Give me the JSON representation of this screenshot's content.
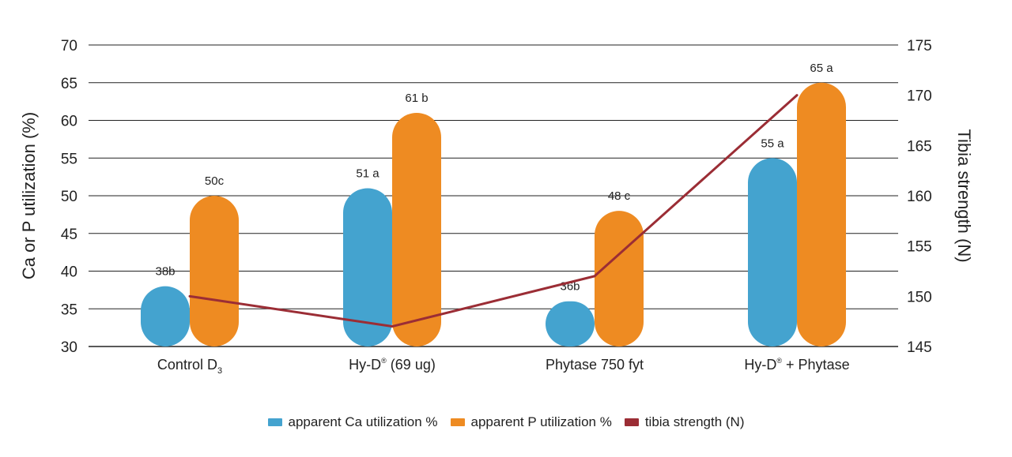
{
  "colors": {
    "ca": "#44a3cf",
    "p": "#ee8b22",
    "tibia": "#9b2d35",
    "grid": "#222222"
  },
  "chart_data": {
    "type": "bar",
    "categories": [
      "Control D",
      "Hy-D",
      "Phytase 750 fyt",
      "Hy-D + Phytase"
    ],
    "category_parts": [
      {
        "main": "Control D",
        "sub": "3",
        "sup": "",
        "rest": ""
      },
      {
        "main": "Hy-D",
        "sub": "",
        "sup": "®",
        "rest": " (69 ug)"
      },
      {
        "main": "Phytase 750 fyt",
        "sub": "",
        "sup": "",
        "rest": ""
      },
      {
        "main": "Hy-D",
        "sub": "",
        "sup": "®",
        "rest": " + Phytase"
      }
    ],
    "series": [
      {
        "name": "apparent Ca utilization %",
        "type": "bar",
        "axis": "left",
        "values": [
          38,
          51,
          36,
          55
        ],
        "labels": [
          "38b",
          "51 a",
          "36b",
          "55 a"
        ]
      },
      {
        "name": "apparent P utilization %",
        "type": "bar",
        "axis": "left",
        "values": [
          50,
          61,
          48,
          65
        ],
        "labels": [
          "50c",
          "61 b",
          "48 c",
          "65 a"
        ]
      },
      {
        "name": "tibia strength (N)",
        "type": "line",
        "axis": "right",
        "values": [
          150,
          147,
          152,
          170
        ]
      }
    ],
    "ylabel": "Ca or P utilization (%)",
    "y2label": "Tibia strength (N)",
    "ylim": [
      30,
      70
    ],
    "y2lim": [
      145,
      175
    ],
    "yticks": [
      "30",
      "35",
      "40",
      "45",
      "50",
      "55",
      "60",
      "65",
      "70"
    ],
    "y2ticks": [
      "145",
      "150",
      "155",
      "160",
      "165",
      "170",
      "175"
    ],
    "grid": true,
    "legend_position": "bottom"
  }
}
